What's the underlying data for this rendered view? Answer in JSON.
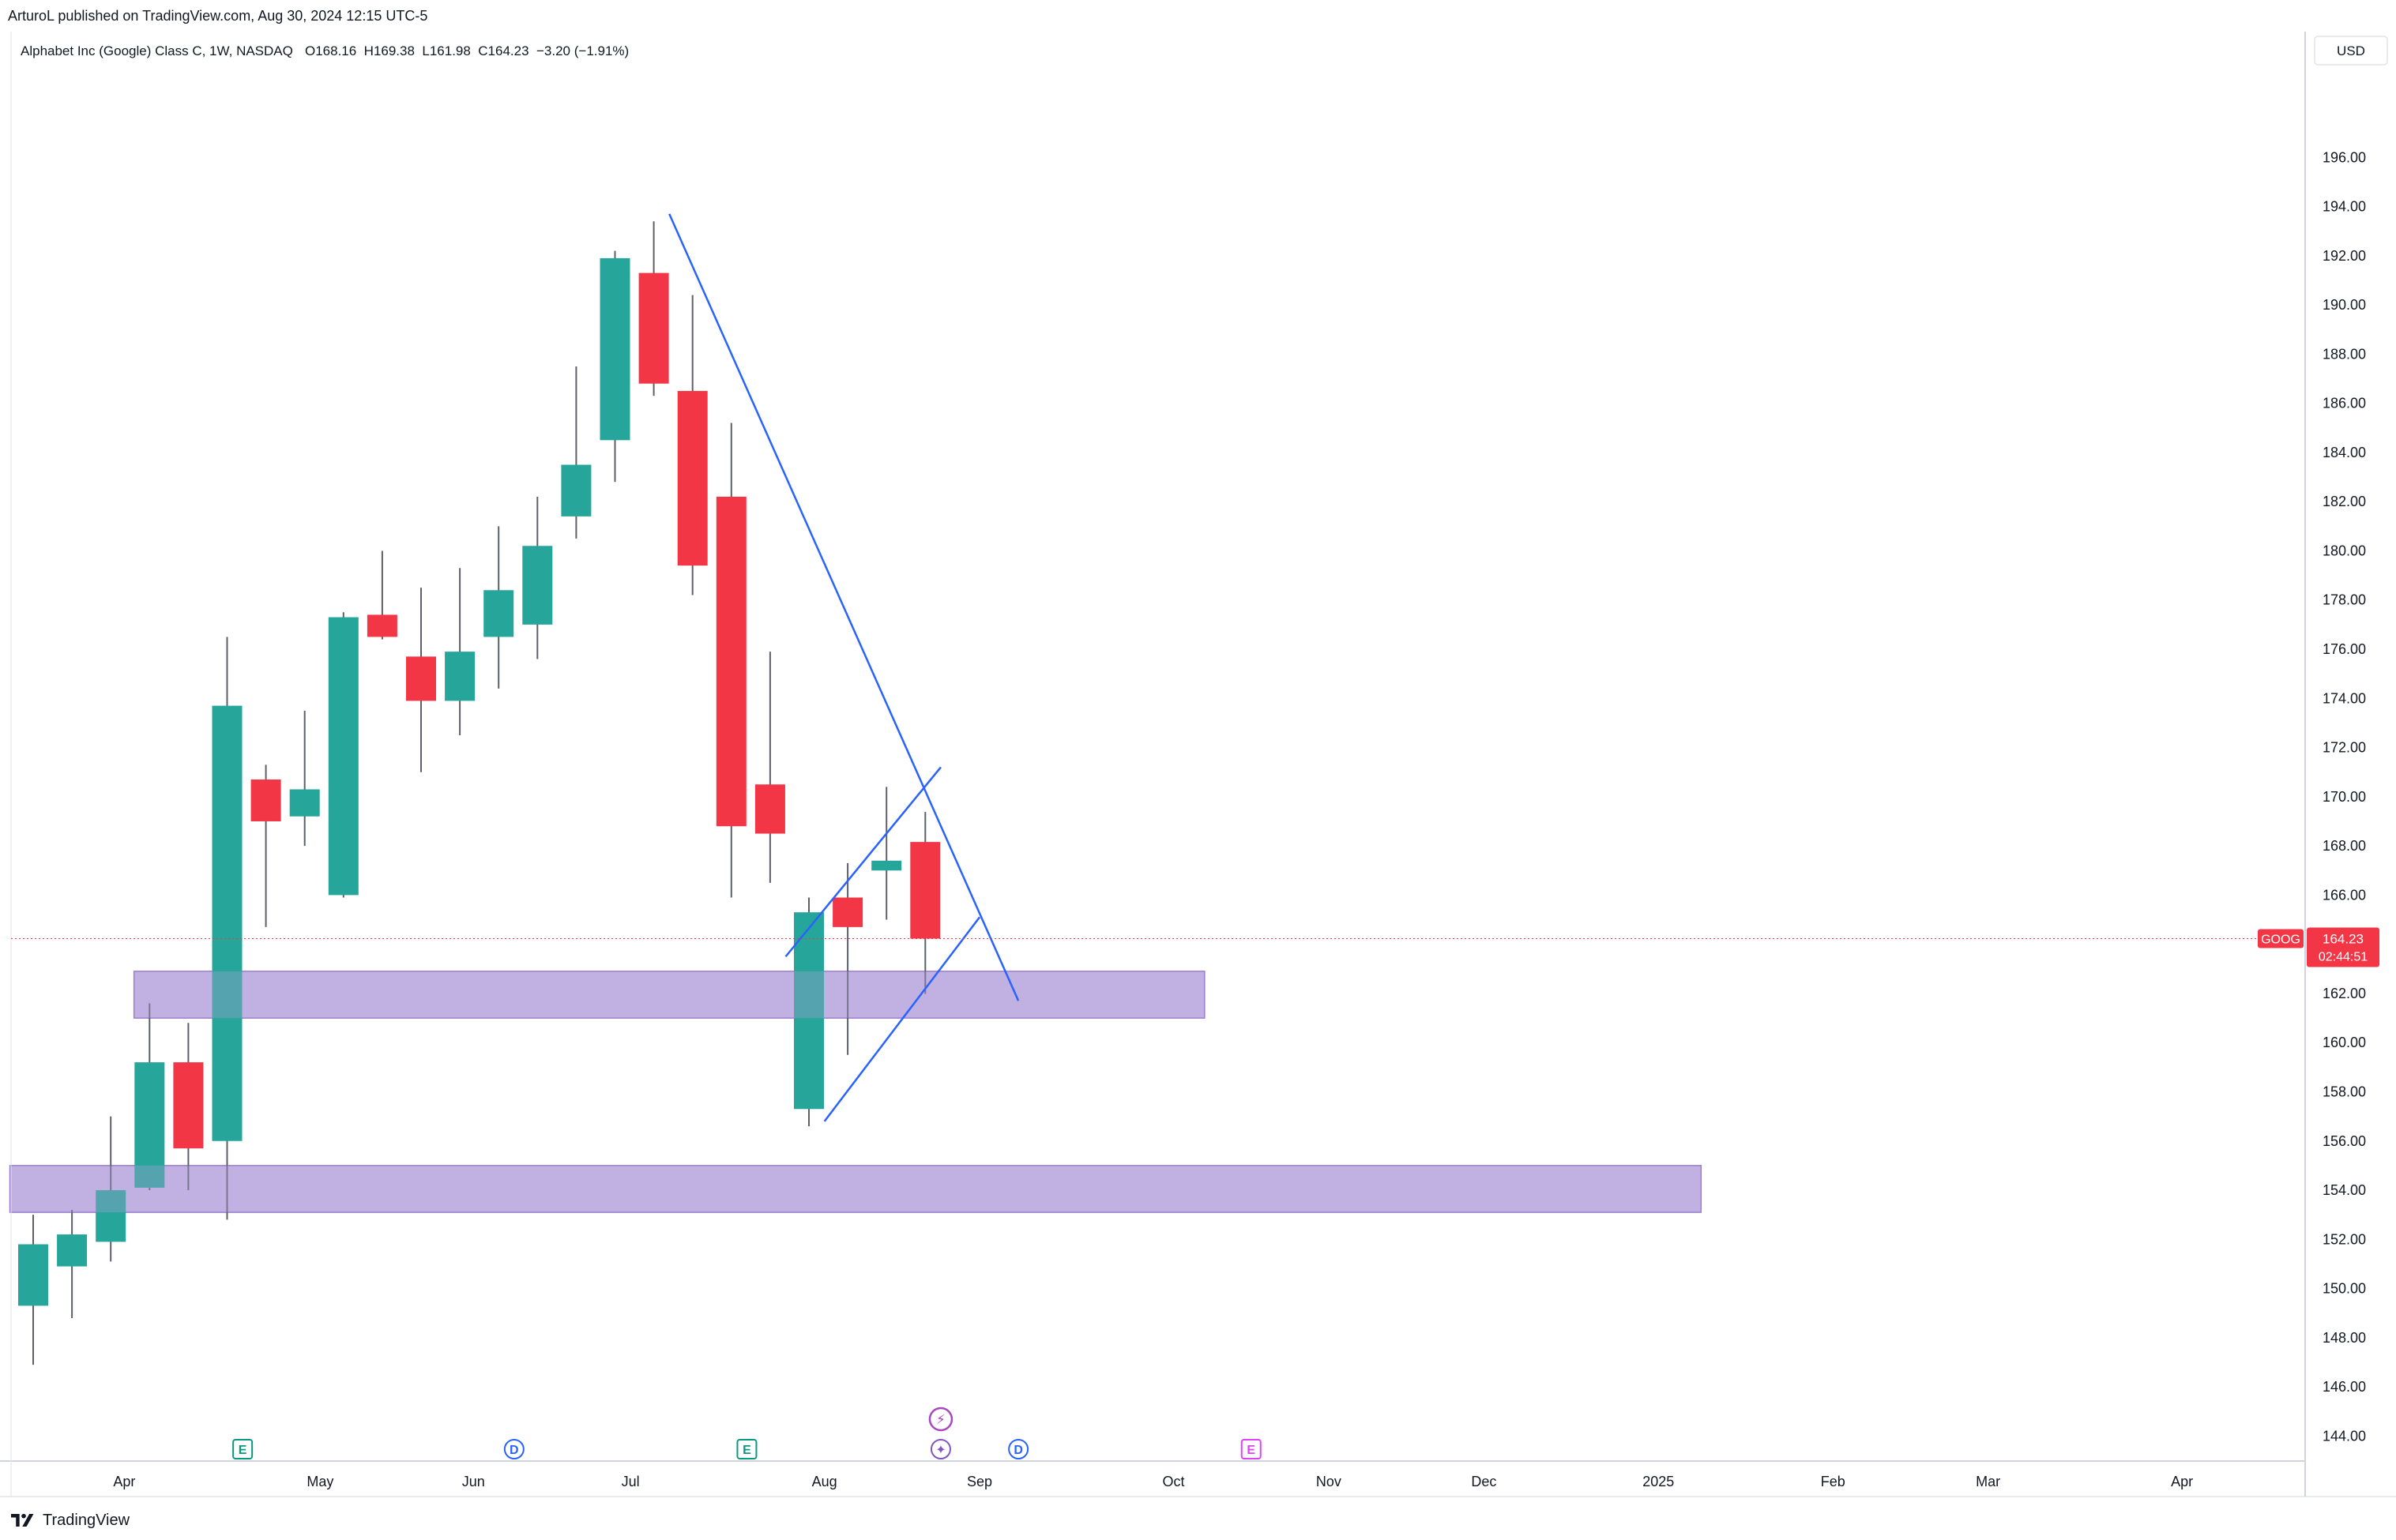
{
  "header": {
    "published_by": "ArturoL published on TradingView.com, Aug 30, 2024 12:15 UTC-5"
  },
  "legend": {
    "symbol_desc": "Alphabet Inc (Google) Class C, 1W, NASDAQ",
    "ohlc": "O168.16  H169.38  L161.98  C164.23  −3.20 (−1.91%)"
  },
  "footer": {
    "brand": "TradingView"
  },
  "colors": {
    "up": "#26a69a",
    "down": "#f23645",
    "trend": "#2962ff",
    "zone": "#b39ddb",
    "price": "#f23645"
  },
  "chart_data": {
    "type": "candlestick",
    "currency": "USD",
    "ylim": [
      142.6,
      198.0
    ],
    "y_ticks": [
      "144.00",
      "146.00",
      "148.00",
      "150.00",
      "152.00",
      "154.00",
      "156.00",
      "158.00",
      "160.00",
      "162.00",
      "164.00",
      "166.00",
      "168.00",
      "170.00",
      "172.00",
      "174.00",
      "176.00",
      "178.00",
      "180.00",
      "182.00",
      "184.00",
      "186.00",
      "188.00",
      "190.00",
      "192.00",
      "194.00",
      "196.00"
    ],
    "x_labels": [
      {
        "label": "Apr",
        "week": 2.35
      },
      {
        "label": "May",
        "week": 7.4
      },
      {
        "label": "Jun",
        "week": 11.35
      },
      {
        "label": "Jul",
        "week": 15.4
      },
      {
        "label": "Aug",
        "week": 20.4
      },
      {
        "label": "Sep",
        "week": 24.4
      },
      {
        "label": "Oct",
        "week": 29.4
      },
      {
        "label": "Nov",
        "week": 33.4
      },
      {
        "label": "Dec",
        "week": 37.4
      },
      {
        "label": "2025",
        "week": 41.9
      },
      {
        "label": "Feb",
        "week": 46.4
      },
      {
        "label": "Mar",
        "week": 50.4
      },
      {
        "label": "Apr",
        "week": 55.4
      }
    ],
    "candles": [
      {
        "o": 149.3,
        "h": 153.0,
        "l": 146.9,
        "c": 151.8
      },
      {
        "o": 150.9,
        "h": 153.2,
        "l": 148.8,
        "c": 152.2
      },
      {
        "o": 151.9,
        "h": 157.0,
        "l": 151.1,
        "c": 154.0
      },
      {
        "o": 154.1,
        "h": 161.6,
        "l": 154.0,
        "c": 159.2
      },
      {
        "o": 159.2,
        "h": 160.8,
        "l": 154.0,
        "c": 155.7
      },
      {
        "o": 156.0,
        "h": 176.5,
        "l": 152.8,
        "c": 173.7
      },
      {
        "o": 170.7,
        "h": 171.3,
        "l": 164.7,
        "c": 169.0
      },
      {
        "o": 169.2,
        "h": 173.5,
        "l": 168.0,
        "c": 170.3
      },
      {
        "o": 166.0,
        "h": 177.5,
        "l": 165.9,
        "c": 177.3
      },
      {
        "o": 177.4,
        "h": 180.0,
        "l": 176.4,
        "c": 176.5
      },
      {
        "o": 175.7,
        "h": 178.5,
        "l": 171.0,
        "c": 173.9
      },
      {
        "o": 173.9,
        "h": 179.3,
        "l": 172.5,
        "c": 175.9
      },
      {
        "o": 176.5,
        "h": 181.0,
        "l": 174.4,
        "c": 178.4
      },
      {
        "o": 177.0,
        "h": 182.2,
        "l": 175.6,
        "c": 180.2
      },
      {
        "o": 181.4,
        "h": 187.5,
        "l": 180.5,
        "c": 183.5
      },
      {
        "o": 184.5,
        "h": 192.2,
        "l": 182.8,
        "c": 191.9
      },
      {
        "o": 191.3,
        "h": 193.4,
        "l": 186.3,
        "c": 186.8
      },
      {
        "o": 186.5,
        "h": 190.4,
        "l": 178.2,
        "c": 179.4
      },
      {
        "o": 182.2,
        "h": 185.2,
        "l": 165.9,
        "c": 168.8
      },
      {
        "o": 170.5,
        "h": 175.9,
        "l": 166.5,
        "c": 168.5
      },
      {
        "o": 157.3,
        "h": 165.9,
        "l": 156.6,
        "c": 165.3
      },
      {
        "o": 165.9,
        "h": 167.3,
        "l": 159.5,
        "c": 164.7
      },
      {
        "o": 167.0,
        "h": 170.4,
        "l": 165.0,
        "c": 167.4
      },
      {
        "o": 168.16,
        "h": 169.38,
        "l": 161.98,
        "c": 164.23
      }
    ],
    "last_price": {
      "symbol": "GOOG",
      "price": "164.23",
      "countdown": "02:44:51"
    },
    "zones": [
      {
        "week_start": 2.6,
        "week_end": 30.2,
        "y_low": 161.0,
        "y_high": 162.9
      },
      {
        "week_start": -0.6,
        "week_end": 43.0,
        "y_low": 153.1,
        "y_high": 155.0
      }
    ],
    "trendlines": [
      {
        "w1": 16.4,
        "p1": 193.7,
        "w2": 25.4,
        "p2": 161.7
      },
      {
        "w1": 19.4,
        "p1": 163.5,
        "w2": 23.4,
        "p2": 171.2
      },
      {
        "w1": 20.4,
        "p1": 156.8,
        "w2": 24.4,
        "p2": 165.1
      }
    ],
    "events": [
      {
        "glyph": "E",
        "week": 5.4,
        "color": "#089981"
      },
      {
        "glyph": "D",
        "week": 12.4,
        "color": "#2962ff"
      },
      {
        "glyph": "E",
        "week": 18.4,
        "color": "#089981"
      },
      {
        "glyph": "D",
        "week": 25.4,
        "color": "#2962ff"
      },
      {
        "glyph": "E",
        "week": 31.4,
        "color": "#e040fb"
      },
      {
        "glyph": "✦",
        "week": 23.4,
        "color": "#7e57c2"
      }
    ],
    "special_event": {
      "glyph": "⚡",
      "week": 23.4,
      "color": "#ab47bc"
    }
  }
}
